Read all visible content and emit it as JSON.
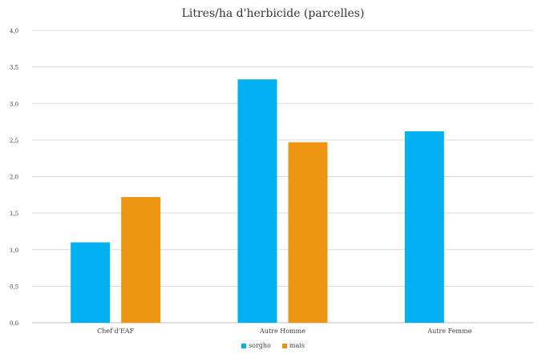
{
  "chart_data": {
    "type": "bar",
    "title": "Litres/ha d'herbicide (parcelles)",
    "categories": [
      "Chef d'EAF",
      "Autre Homme",
      "Autre Femme"
    ],
    "series": [
      {
        "name": "sorgho",
        "color": "#00B0F0",
        "values": [
          1.1,
          3.33,
          2.62
        ]
      },
      {
        "name": "mais",
        "color": "#EE9514",
        "values": [
          1.72,
          2.47,
          null
        ]
      }
    ],
    "yticks": [
      "0,0",
      "0,5",
      "1,0",
      "1,5",
      "2,0",
      "2,5",
      "3,0",
      "3,5",
      "4,0"
    ],
    "ylim": [
      0,
      4
    ],
    "grid": true,
    "legend_position": "bottom"
  }
}
